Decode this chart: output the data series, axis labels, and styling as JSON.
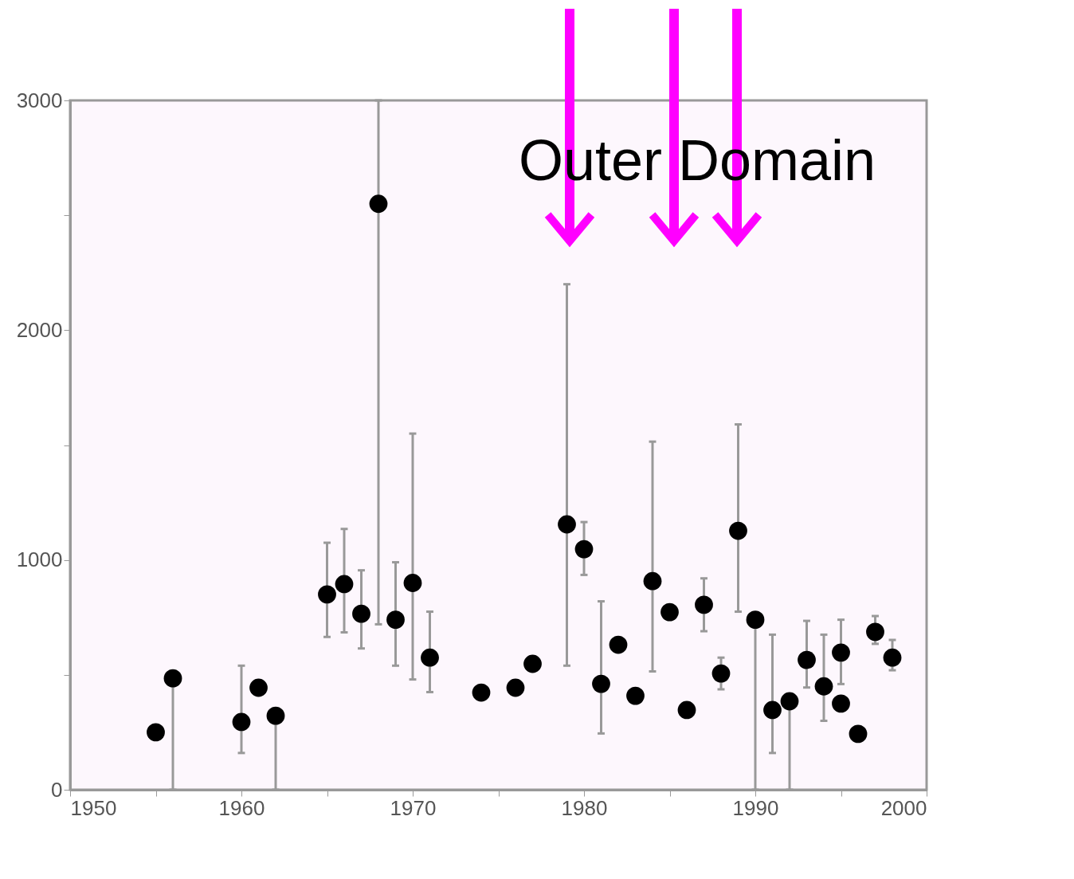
{
  "chart_data": {
    "type": "scatter",
    "marker": "circle",
    "grid": false,
    "xlim": [
      1950,
      2000
    ],
    "ylim": [
      0,
      3000
    ],
    "xticks": [
      1950,
      {
        "value": 1955,
        "label": null
      },
      1960,
      {
        "value": 1965,
        "label": null
      },
      1970,
      {
        "value": 1975,
        "label": null
      },
      1980,
      {
        "value": 1985,
        "label": null
      },
      1990,
      {
        "value": 1995,
        "label": null
      },
      2000
    ],
    "yticks": [
      0,
      {
        "value": 500,
        "label": null
      },
      1000,
      {
        "value": 1500,
        "label": null
      },
      2000,
      {
        "value": 2500,
        "label": null
      },
      3000
    ],
    "annotations": [
      "Outer Domain"
    ],
    "series": [
      {
        "color": "#000000",
        "x": [
          1955,
          1956,
          1960,
          1961,
          1962,
          1965,
          1966,
          1967,
          1968,
          1969,
          1970,
          1971,
          1974,
          1976,
          1977,
          1979,
          1980,
          1981,
          1982,
          1983,
          1984,
          1985,
          1986,
          1987,
          1988,
          1989,
          1990,
          1991,
          1992,
          1993,
          1994,
          1995,
          1995,
          1996,
          1997,
          1998
        ],
        "values": [
          250,
          485,
          295,
          444,
          322,
          850,
          895,
          766,
          2550,
          740,
          900,
          575,
          423,
          444,
          548,
          1155,
          1047,
          461,
          631,
          409,
          908,
          773,
          347,
          805,
          506,
          1127,
          740,
          347,
          385,
          565,
          450,
          597,
          375,
          243,
          687,
          575
        ],
        "errors": [
          null,
          [
            0,
            485
          ],
          [
            160,
            540
          ],
          null,
          [
            0,
            322
          ],
          [
            665,
            1075
          ],
          [
            685,
            1135
          ],
          [
            615,
            955
          ],
          [
            720,
            3000
          ],
          [
            540,
            990
          ],
          [
            480,
            1550
          ],
          [
            425,
            775
          ],
          null,
          null,
          null,
          [
            540,
            2200
          ],
          [
            935,
            1165
          ],
          [
            245,
            820
          ],
          null,
          null,
          [
            515,
            1515
          ],
          null,
          null,
          [
            690,
            920
          ],
          [
            437,
            575
          ],
          [
            775,
            1590
          ],
          [
            0,
            740
          ],
          [
            160,
            675
          ],
          [
            0,
            385
          ],
          [
            445,
            735
          ],
          [
            300,
            675
          ],
          [
            460,
            740
          ],
          null,
          null,
          [
            635,
            756
          ],
          [
            520,
            652
          ]
        ]
      }
    ]
  }
}
